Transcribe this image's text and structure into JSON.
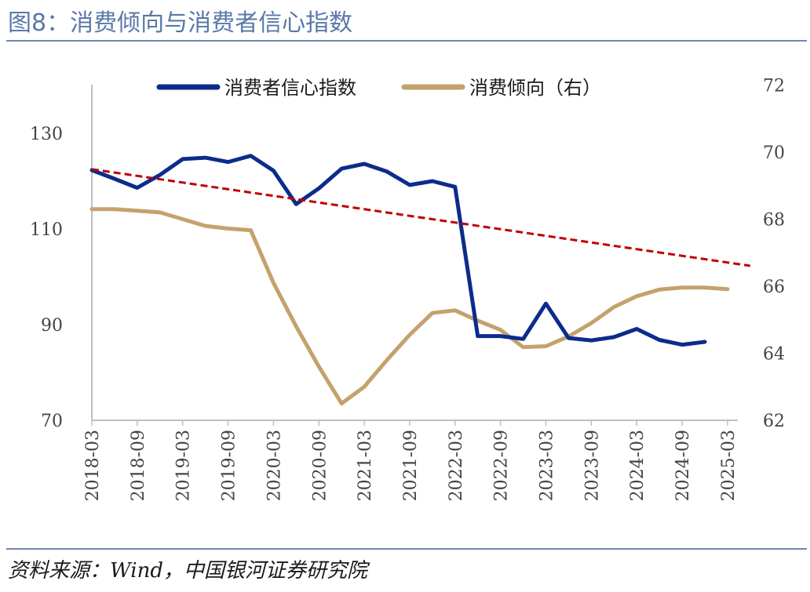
{
  "figure": {
    "title": "图8：消费倾向与消费者信心指数",
    "source": "资料来源：Wind，中国银河证券研究院"
  },
  "colors": {
    "title": "#5a78a8",
    "rule": "#6f86b0",
    "confidence": "#0b2c8c",
    "propensity": "#c4a26c",
    "trend": "#c00000",
    "axis": "#bfbfbf"
  },
  "chart_data": {
    "type": "line",
    "title": "",
    "grid": false,
    "legend_position": "top",
    "x_tick_labels": [
      "2018-03",
      "2018-09",
      "2019-03",
      "2019-09",
      "2020-03",
      "2020-09",
      "2021-03",
      "2021-09",
      "2022-03",
      "2022-09",
      "2023-03",
      "2023-09",
      "2024-03",
      "2024-09",
      "2025-03"
    ],
    "y_left": {
      "range": [
        70,
        140
      ],
      "ticks": [
        "70",
        "90",
        "110",
        "130"
      ],
      "tick_values": [
        70,
        90,
        110,
        130
      ]
    },
    "y_right": {
      "range": [
        62,
        72
      ],
      "ticks": [
        "62",
        "64",
        "66",
        "68",
        "70",
        "72"
      ],
      "tick_values": [
        62,
        64,
        66,
        68,
        70,
        72
      ]
    },
    "series": [
      {
        "name": "消费者信心指数",
        "axis": "left",
        "color": "#0b2c8c",
        "x": [
          "2018-03",
          "2018-06",
          "2018-09",
          "2018-12",
          "2019-03",
          "2019-06",
          "2019-09",
          "2019-12",
          "2020-03",
          "2020-06",
          "2020-09",
          "2020-12",
          "2021-03",
          "2021-06",
          "2021-09",
          "2021-12",
          "2022-03",
          "2022-06",
          "2022-09",
          "2022-12",
          "2023-03",
          "2023-06",
          "2023-09",
          "2023-12",
          "2024-03",
          "2024-06",
          "2024-09",
          "2024-12"
        ],
        "values": [
          122.3,
          120.5,
          118.6,
          121.3,
          124.6,
          124.9,
          124.0,
          125.3,
          122.2,
          115.2,
          118.5,
          122.6,
          123.6,
          122.0,
          119.2,
          120.0,
          118.8,
          87.6,
          87.6,
          87.0,
          94.4,
          87.2,
          86.7,
          87.4,
          89.1,
          86.8,
          85.8,
          86.4
        ]
      },
      {
        "name": "消费倾向（右）",
        "axis": "right",
        "color": "#c4a26c",
        "x": [
          "2018-03",
          "2018-06",
          "2018-09",
          "2018-12",
          "2019-03",
          "2019-06",
          "2019-09",
          "2019-12",
          "2020-03",
          "2020-06",
          "2020-09",
          "2020-12",
          "2021-03",
          "2021-06",
          "2021-09",
          "2021-12",
          "2022-03",
          "2022-06",
          "2022-09",
          "2022-12",
          "2023-03",
          "2023-06",
          "2023-09",
          "2023-12",
          "2024-03",
          "2024-06",
          "2024-09",
          "2024-12",
          "2025-03"
        ],
        "values": [
          68.3,
          68.3,
          68.25,
          68.2,
          68.0,
          67.8,
          67.72,
          67.67,
          66.1,
          64.8,
          63.6,
          62.5,
          63.0,
          63.8,
          64.55,
          65.2,
          65.28,
          64.97,
          64.7,
          64.18,
          64.21,
          64.5,
          64.9,
          65.38,
          65.7,
          65.9,
          65.96,
          65.96,
          65.91
        ]
      },
      {
        "name": "",
        "kind": "trend",
        "axis": "left",
        "style": "dashed",
        "color": "#c00000",
        "x": [
          "2018-03",
          "2025-06"
        ],
        "values": [
          122.5,
          102.3
        ]
      }
    ]
  }
}
